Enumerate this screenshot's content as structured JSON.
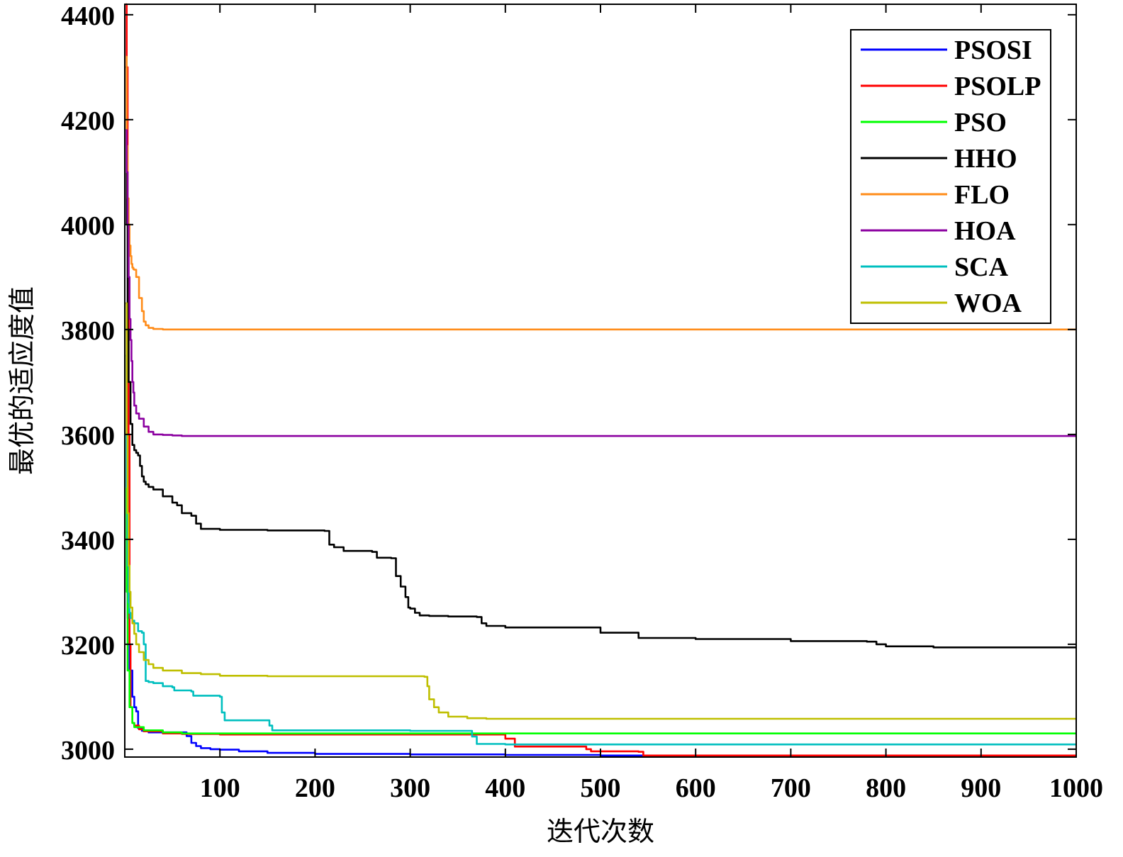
{
  "chart_data": {
    "type": "line",
    "title": "",
    "xlabel": "迭代次数",
    "ylabel": "最优的适应度值",
    "xlim": [
      0,
      1000
    ],
    "ylim": [
      2985,
      4420
    ],
    "xticks": [
      100,
      200,
      300,
      400,
      500,
      600,
      700,
      800,
      900,
      1000
    ],
    "yticks": [
      3000,
      3200,
      3400,
      3600,
      3800,
      4000,
      4200,
      4400
    ],
    "legend_position": "top-right",
    "series": [
      {
        "name": "PSOSI",
        "color": "#0000ff",
        "x": [
          1,
          3,
          5,
          8,
          10,
          12,
          14,
          18,
          25,
          60,
          65,
          70,
          75,
          80,
          90,
          100,
          120,
          150,
          200,
          300,
          400,
          500,
          1000
        ],
        "y": [
          3850,
          3250,
          3150,
          3100,
          3080,
          3072,
          3040,
          3035,
          3032,
          3032,
          3025,
          3012,
          3006,
          3002,
          3000,
          2999,
          2996,
          2993,
          2991,
          2990,
          2989,
          2988,
          2988
        ]
      },
      {
        "name": "PSOLP",
        "color": "#ff0000",
        "x": [
          1,
          2,
          3,
          4,
          5,
          6,
          8,
          10,
          15,
          20,
          40,
          60,
          100,
          200,
          300,
          380,
          395,
          400,
          410,
          480,
          485,
          490,
          540,
          545,
          1000
        ],
        "y": [
          4420,
          4300,
          4000,
          3600,
          3200,
          3080,
          3050,
          3045,
          3038,
          3034,
          3030,
          3029,
          3028,
          3028,
          3028,
          3028,
          3028,
          3020,
          3005,
          3005,
          3000,
          2996,
          2995,
          2988,
          2988
        ]
      },
      {
        "name": "PSO",
        "color": "#00ff00",
        "x": [
          1,
          2,
          3,
          5,
          8,
          10,
          20,
          40,
          60,
          100,
          200,
          300,
          400,
          1000
        ],
        "y": [
          3600,
          3300,
          3150,
          3080,
          3050,
          3042,
          3036,
          3032,
          3030,
          3030,
          3030,
          3030,
          3030,
          3030
        ]
      },
      {
        "name": "HHO",
        "color": "#000000",
        "x": [
          1,
          2,
          3,
          4,
          6,
          8,
          10,
          12,
          14,
          16,
          18,
          20,
          22,
          25,
          30,
          40,
          50,
          55,
          60,
          70,
          75,
          80,
          100,
          150,
          210,
          215,
          220,
          230,
          260,
          265,
          280,
          285,
          290,
          295,
          298,
          300,
          305,
          310,
          320,
          340,
          370,
          375,
          380,
          400,
          500,
          540,
          600,
          700,
          780,
          790,
          800,
          850,
          1000
        ],
        "y": [
          4300,
          4000,
          3800,
          3700,
          3620,
          3580,
          3570,
          3565,
          3560,
          3540,
          3520,
          3510,
          3505,
          3500,
          3495,
          3482,
          3470,
          3465,
          3450,
          3445,
          3430,
          3420,
          3418,
          3417,
          3416,
          3390,
          3385,
          3378,
          3376,
          3365,
          3364,
          3330,
          3310,
          3290,
          3270,
          3268,
          3260,
          3255,
          3254,
          3253,
          3252,
          3240,
          3235,
          3232,
          3222,
          3212,
          3210,
          3206,
          3205,
          3200,
          3196,
          3194,
          3194
        ]
      },
      {
        "name": "FLO",
        "color": "#ff8c1a",
        "x": [
          1,
          2,
          3,
          4,
          5,
          6,
          7,
          8,
          9,
          10,
          12,
          15,
          18,
          20,
          22,
          25,
          30,
          40,
          100,
          500,
          1000
        ],
        "y": [
          4320,
          4150,
          4050,
          4000,
          3960,
          3940,
          3925,
          3918,
          3915,
          3914,
          3900,
          3860,
          3835,
          3815,
          3808,
          3803,
          3801,
          3800,
          3800,
          3800,
          3800
        ]
      },
      {
        "name": "HOA",
        "color": "#8b00a0",
        "x": [
          1,
          2,
          3,
          4,
          5,
          6,
          7,
          8,
          9,
          10,
          12,
          15,
          20,
          25,
          30,
          40,
          50,
          60,
          100,
          200,
          500,
          1000
        ],
        "y": [
          4180,
          4100,
          4000,
          3900,
          3820,
          3780,
          3740,
          3700,
          3680,
          3655,
          3640,
          3630,
          3615,
          3605,
          3600,
          3599,
          3598,
          3597,
          3597,
          3597,
          3597,
          3597
        ]
      },
      {
        "name": "SCA",
        "color": "#00bfbf",
        "x": [
          1,
          2,
          3,
          4,
          5,
          6,
          8,
          10,
          14,
          18,
          20,
          22,
          25,
          30,
          40,
          50,
          52,
          70,
          72,
          100,
          102,
          105,
          150,
          152,
          155,
          200,
          300,
          360,
          365,
          370,
          400,
          500,
          1000
        ],
        "y": [
          3750,
          3500,
          3350,
          3280,
          3260,
          3250,
          3245,
          3240,
          3225,
          3222,
          3200,
          3130,
          3128,
          3126,
          3120,
          3118,
          3112,
          3110,
          3102,
          3100,
          3070,
          3055,
          3055,
          3045,
          3036,
          3036,
          3035,
          3035,
          3024,
          3010,
          3009,
          3009,
          3009
        ]
      },
      {
        "name": "WOA",
        "color": "#bfbf00",
        "x": [
          1,
          2,
          3,
          4,
          5,
          6,
          8,
          10,
          12,
          15,
          20,
          25,
          30,
          40,
          60,
          80,
          100,
          150,
          200,
          250,
          300,
          315,
          318,
          320,
          325,
          330,
          340,
          360,
          380,
          400,
          500,
          1000
        ],
        "y": [
          3850,
          3600,
          3450,
          3350,
          3300,
          3270,
          3240,
          3220,
          3200,
          3185,
          3170,
          3162,
          3155,
          3150,
          3145,
          3143,
          3140,
          3139,
          3139,
          3139,
          3139,
          3138,
          3120,
          3095,
          3080,
          3070,
          3062,
          3059,
          3058,
          3058,
          3058,
          3058
        ]
      }
    ]
  }
}
